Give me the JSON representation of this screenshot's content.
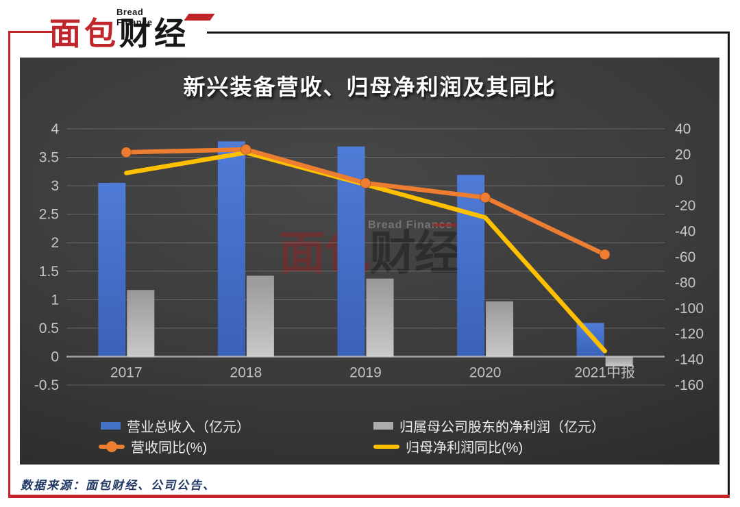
{
  "logo": {
    "subtitle": "Bread Finance",
    "title_red": "面包",
    "title_black": "财经"
  },
  "chart": {
    "title": "新兴装备营收、归母净利润及其同比",
    "watermark": {
      "en": "Bread Finance",
      "cn_red": "面包",
      "cn_black": "财经"
    }
  },
  "legend": {
    "items": [
      {
        "label": "营业总收入（亿元）",
        "type": "bar",
        "color": "#4472C4"
      },
      {
        "label": "归属母公司股东的净利润（亿元）",
        "type": "bar",
        "color": "#ACACAC"
      },
      {
        "label": "营收同比(%)",
        "type": "line-marker",
        "color": "#ED7D31"
      },
      {
        "label": "归母净利润同比(%)",
        "type": "line",
        "color": "#FFC000"
      }
    ]
  },
  "footer": {
    "source": "数据来源：面包财经、公司公告、"
  },
  "chart_data": {
    "type": "combo-bar-line",
    "title": "新兴装备营收、归母净利润及其同比",
    "categories": [
      "2017",
      "2018",
      "2019",
      "2020",
      "2021中报"
    ],
    "bar_series": [
      {
        "name": "营业总收入（亿元）",
        "axis": "left",
        "color_top": "#4F7CD8",
        "color_bottom": "#3A61B6",
        "values": [
          3.05,
          3.78,
          3.69,
          3.19,
          0.59
        ]
      },
      {
        "name": "归属母公司股东的净利润（亿元）",
        "axis": "left",
        "color_top": "#999999",
        "color_bottom": "#C9C9C9",
        "values": [
          1.17,
          1.42,
          1.37,
          0.97,
          -0.17
        ]
      }
    ],
    "line_series": [
      {
        "name": "营收同比(%)",
        "axis": "right",
        "color": "#ED7D31",
        "marker": true,
        "values": [
          21.7,
          23.9,
          -2.4,
          -13.6,
          -58.1
        ]
      },
      {
        "name": "归母净利润同比(%)",
        "axis": "right",
        "color": "#FFC000",
        "marker": false,
        "values": [
          5.5,
          21.4,
          -3.5,
          -29.2,
          -133.5
        ]
      }
    ],
    "left_axis": {
      "min": -0.5,
      "max": 4,
      "tick_labels": [
        "4",
        "3.5",
        "3",
        "2.5",
        "2",
        "1.5",
        "1",
        "0.5",
        "0",
        "-0.5"
      ]
    },
    "right_axis": {
      "min": -160,
      "max": 40,
      "tick_labels": [
        "40",
        "20",
        "0",
        "-20",
        "-40",
        "-60",
        "-80",
        "-100",
        "-120",
        "-140",
        "-160"
      ]
    },
    "grid": {
      "color": "rgba(255,255,255,0.22)",
      "zero_line_color": "rgba(235,235,235,0.6)"
    },
    "tick_label_color": "#C6C6C6",
    "category_label_color": "#C0C0C0"
  }
}
